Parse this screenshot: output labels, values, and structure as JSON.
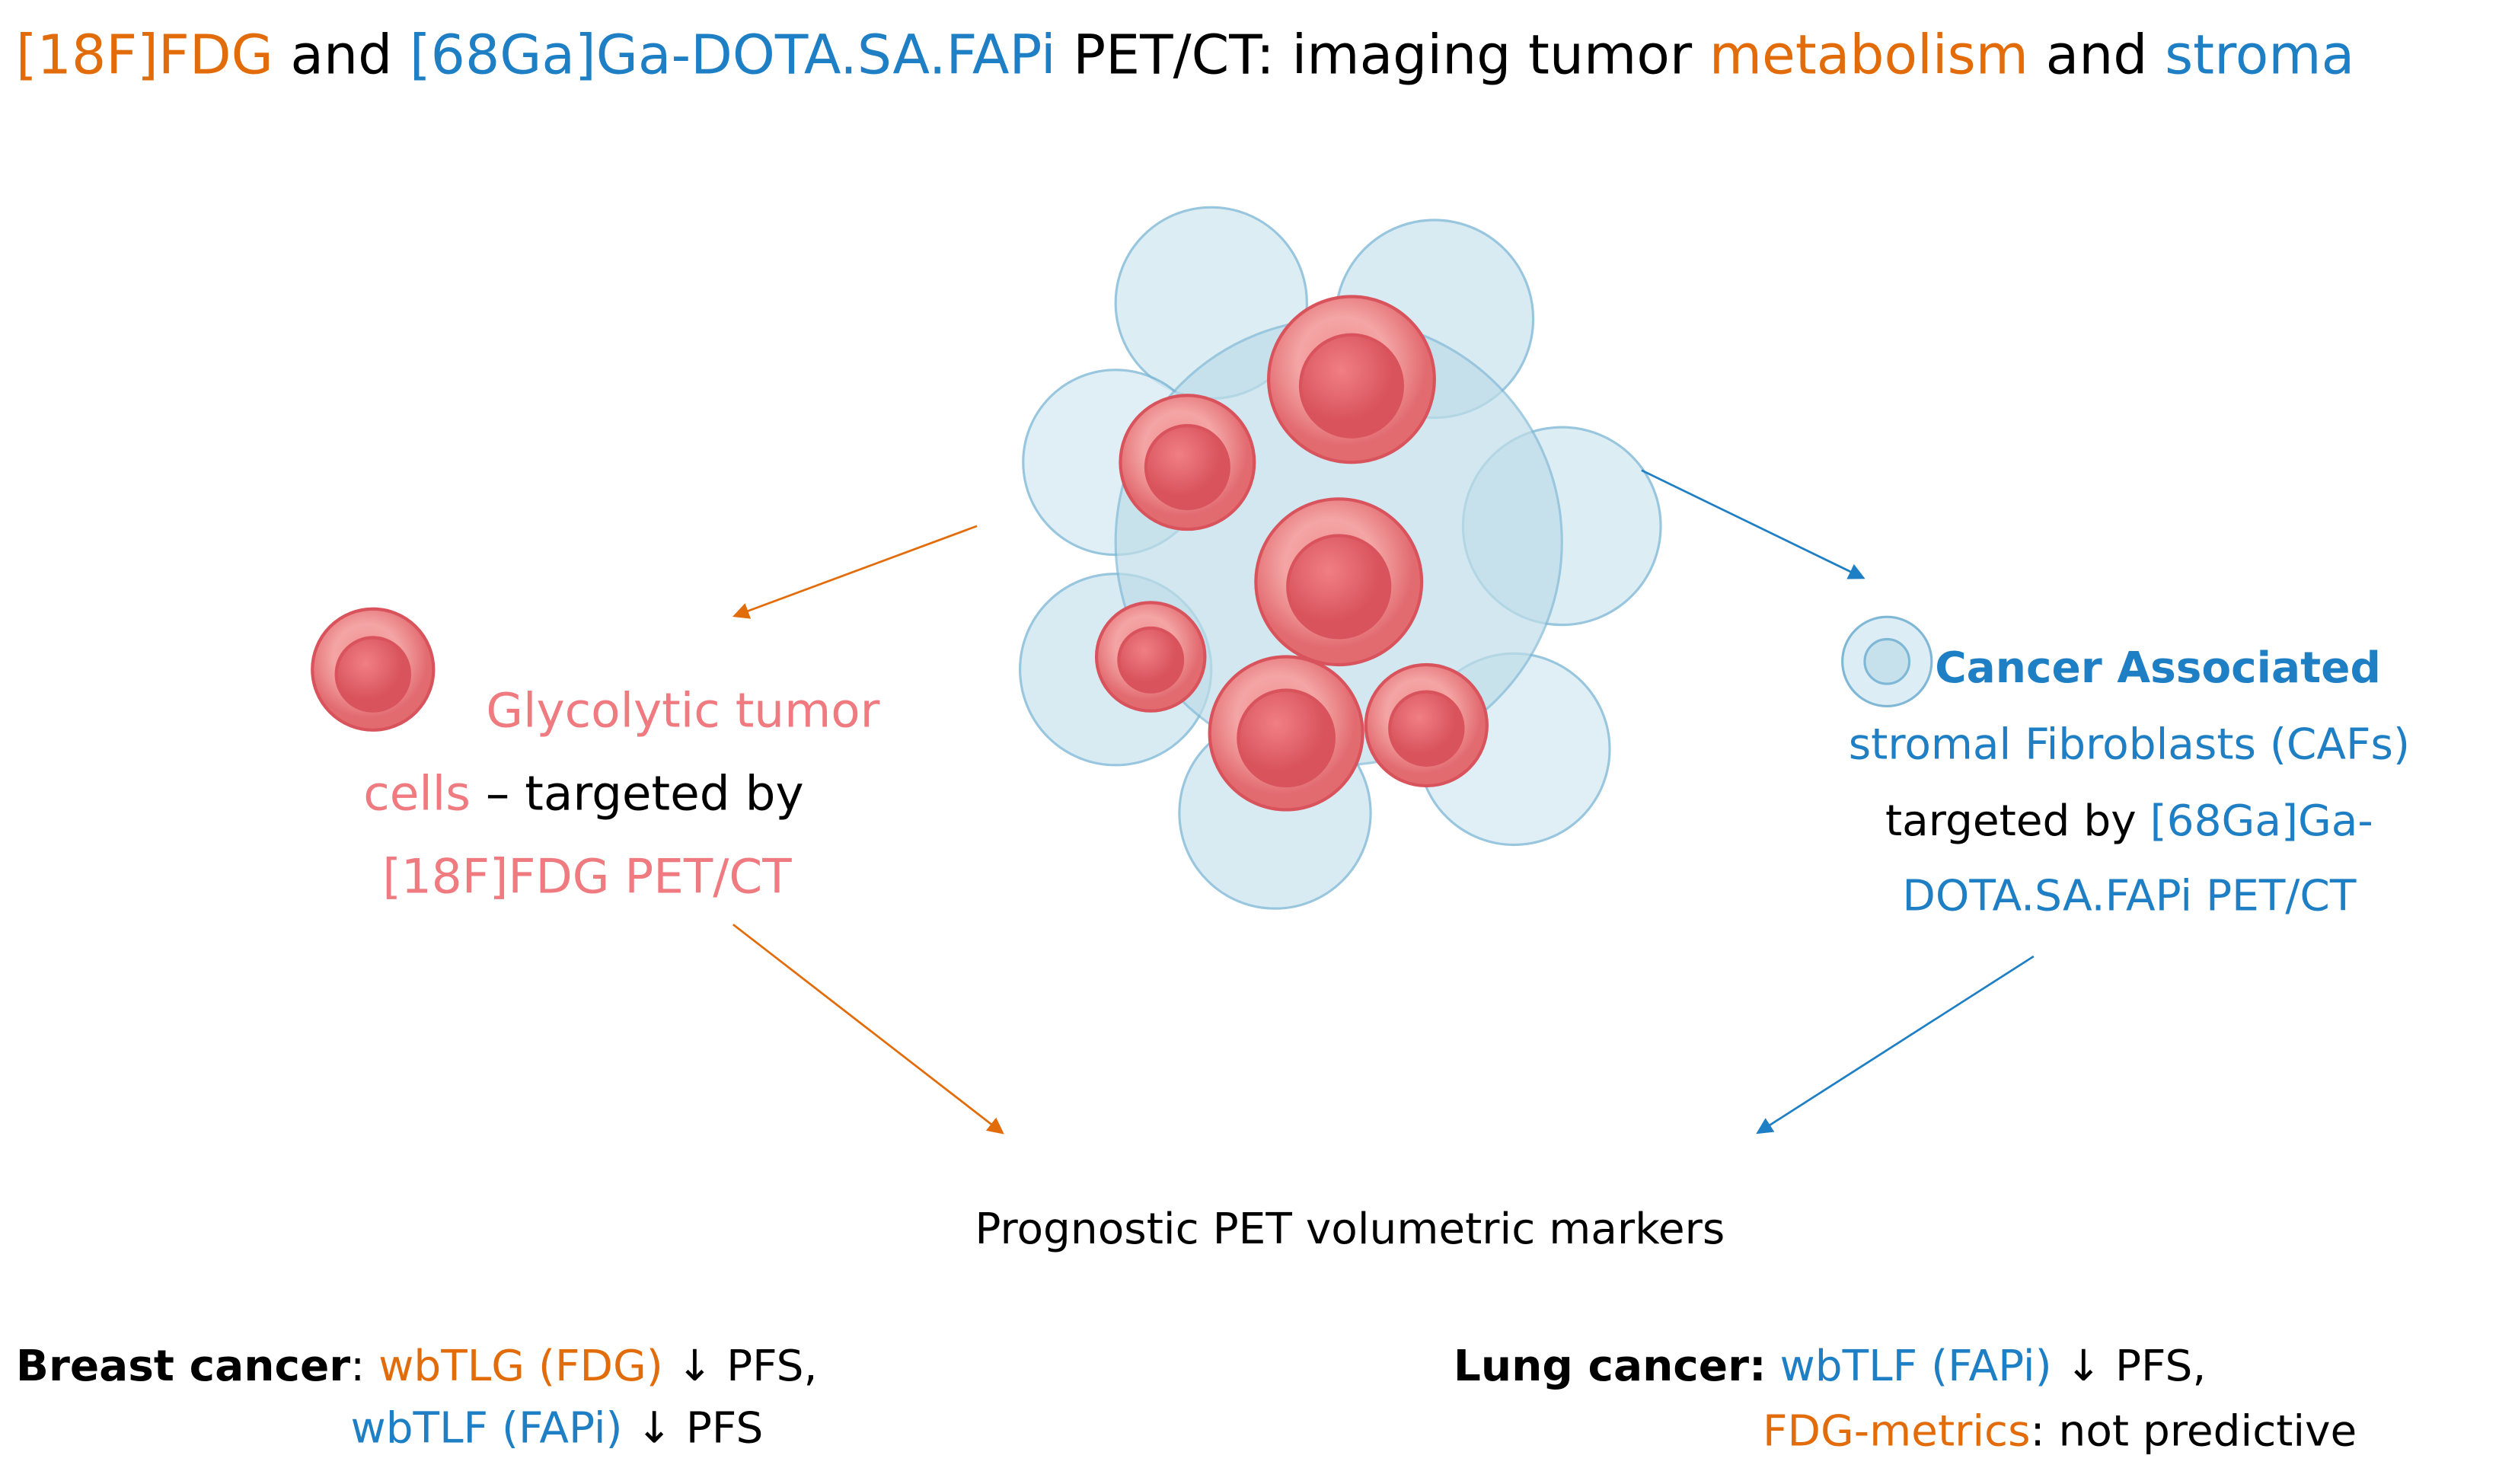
{
  "title": {
    "parts": [
      "[18F]FDG",
      "and",
      "[68Ga]Ga-DOTA.SA.FAPi",
      "PET/CT: imaging tumor",
      "metabolism",
      "and",
      "stroma"
    ]
  },
  "left_label": {
    "lines": [
      "Glycolytic tumor",
      "cells",
      "– targeted by",
      "[18F]FDG PET/CT"
    ]
  },
  "right_label": {
    "lines": [
      "Cancer Associated",
      "stromal Fibroblasts (CAFs)",
      "targeted by",
      "[68Ga]Ga-",
      "DOTA.SA.FAPi PET/CT"
    ]
  },
  "center_label": "Prognostic PET volumetric markers",
  "breast": {
    "name": "Breast cancer",
    "sep": ":",
    "m1": "wbTLG (FDG)",
    "r1": "↓ PFS,",
    "m2": "wbTLF (FAPi)",
    "r2": "↓ PFS"
  },
  "lung": {
    "name": "Lung cancer:",
    "m1": "wbTLF (FAPi)",
    "r1": "↓ PFS,",
    "m2": "FDG-metrics",
    "r2": ": not predictive"
  }
}
